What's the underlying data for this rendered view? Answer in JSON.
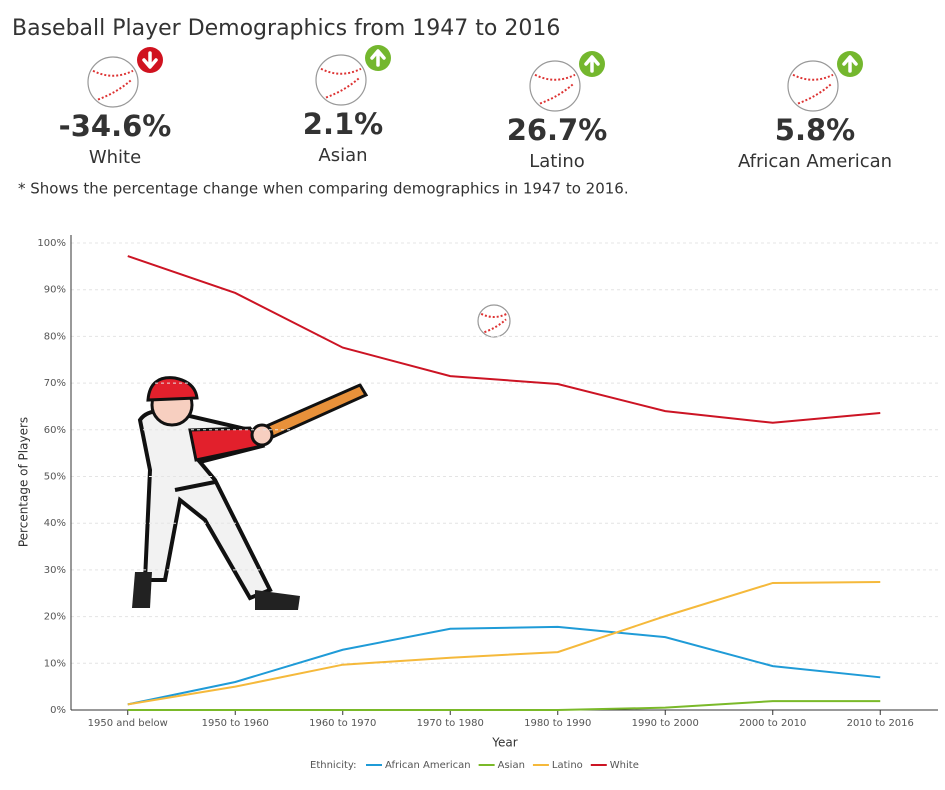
{
  "title": "Baseball Player Demographics from 1947 to 2016",
  "kpis": [
    {
      "value": "-34.6%",
      "label": "White",
      "trend": "down"
    },
    {
      "value": "2.1%",
      "label": "Asian",
      "trend": "up"
    },
    {
      "value": "26.7%",
      "label": "Latino",
      "trend": "up"
    },
    {
      "value": "5.8%",
      "label": "African American",
      "trend": "up"
    }
  ],
  "footnote": "* Shows the percentage change when comparing demographics in 1947 to 2016.",
  "chart_data": {
    "type": "line",
    "x_label": "Year",
    "y_label": "Percentage of Players",
    "legend_title": "Ethnicity:",
    "categories": [
      "1950 and below",
      "1950 to 1960",
      "1960 to 1970",
      "1970 to 1980",
      "1980 to 1990",
      "1990 to 2000",
      "2000 to 2010",
      "2010 to 2016"
    ],
    "series": [
      {
        "name": "African American",
        "color": "#1f9bd7",
        "values": [
          1.2,
          6.0,
          12.9,
          17.4,
          17.8,
          15.6,
          9.4,
          7.0
        ]
      },
      {
        "name": "Asian",
        "color": "#7ab929",
        "values": [
          0,
          0,
          0,
          0,
          0,
          0.5,
          1.9,
          1.9
        ]
      },
      {
        "name": "Latino",
        "color": "#f5b93b",
        "values": [
          1.2,
          5.0,
          9.7,
          11.2,
          12.4,
          20.1,
          27.2,
          27.4
        ]
      },
      {
        "name": "White",
        "color": "#cc1424",
        "values": [
          97.2,
          89.3,
          77.6,
          71.5,
          69.8,
          64.0,
          61.5,
          63.6
        ]
      }
    ],
    "ylim": [
      0,
      100
    ],
    "yticks": [
      {
        "value": 0,
        "label": "0%"
      },
      {
        "value": 10,
        "label": "10%"
      },
      {
        "value": 20,
        "label": "20%"
      },
      {
        "value": 30,
        "label": "30%"
      },
      {
        "value": 40,
        "label": "40%"
      },
      {
        "value": 50,
        "label": "50%"
      },
      {
        "value": 60,
        "label": "60%"
      },
      {
        "value": 70,
        "label": "70%"
      },
      {
        "value": 80,
        "label": "80%"
      },
      {
        "value": 90,
        "label": "90%"
      },
      {
        "value": 100,
        "label": "100%"
      }
    ],
    "grid": true,
    "legend": "bottom"
  }
}
